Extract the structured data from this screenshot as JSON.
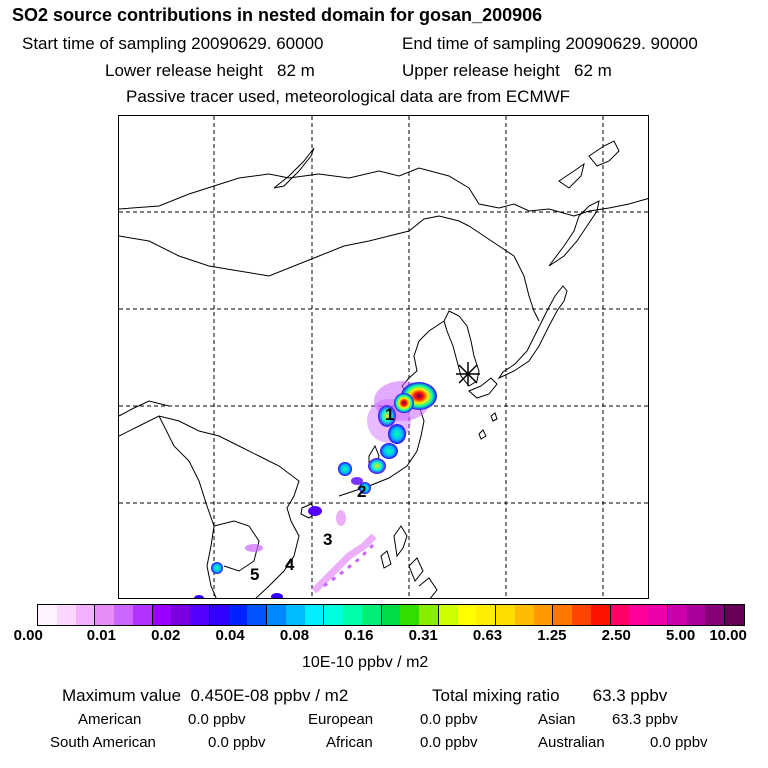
{
  "header": {
    "title": "SO2 source contributions in nested domain for gosan_200906",
    "start_sampling": "Start time of sampling 20090629. 60000",
    "end_sampling": "End time of sampling 20090629. 90000",
    "lower_release": "Lower release height   82 m",
    "upper_release": "Upper release height   62 m",
    "tracer_note": "Passive tracer used, meteorological data are from ECMWF"
  },
  "map": {
    "region_labels": [
      "1",
      "2",
      "3",
      "4",
      "5"
    ],
    "receptor_marker": "gosan receptor star",
    "grid": true,
    "line_color": "#000000"
  },
  "colorbar": {
    "tick_labels": [
      "0.00",
      "0.01",
      "0.02",
      "0.04",
      "0.08",
      "0.16",
      "0.31",
      "0.63",
      "1.25",
      "2.50",
      "5.00",
      "10.00"
    ],
    "colors": [
      "#fff2ff",
      "#fbd6ff",
      "#f2b2ff",
      "#e58cf8",
      "#cc66ff",
      "#b133ff",
      "#9900ff",
      "#7a00e0",
      "#5500ff",
      "#3300ff",
      "#0022ff",
      "#0055ff",
      "#0088ff",
      "#00bbff",
      "#00eeff",
      "#00ffdd",
      "#00ffaa",
      "#00ee77",
      "#00dd44",
      "#33dd00",
      "#88ee00",
      "#ccff00",
      "#ffff00",
      "#ffee00",
      "#ffdd00",
      "#ffbb00",
      "#ff9900",
      "#ff7700",
      "#ff4400",
      "#ff1100",
      "#ff0066",
      "#ff0099",
      "#ee00aa",
      "#cc00aa",
      "#aa0099",
      "#880077",
      "#660055"
    ],
    "unit_label": "10E-10 ppbv / m2"
  },
  "summary": {
    "maximum_value": "Maximum value  0.450E-08 ppbv / m2",
    "total_mixing_ratio": "Total mixing ratio       63.3 ppbv",
    "sources": [
      {
        "name": "American",
        "value": "0.0 ppbv"
      },
      {
        "name": "European",
        "value": "0.0 ppbv"
      },
      {
        "name": "Asian",
        "value": "63.3 ppbv"
      },
      {
        "name": "South American",
        "value": "0.0 ppbv"
      },
      {
        "name": "African",
        "value": "0.0 ppbv"
      },
      {
        "name": "Australian",
        "value": "0.0 ppbv"
      }
    ]
  }
}
